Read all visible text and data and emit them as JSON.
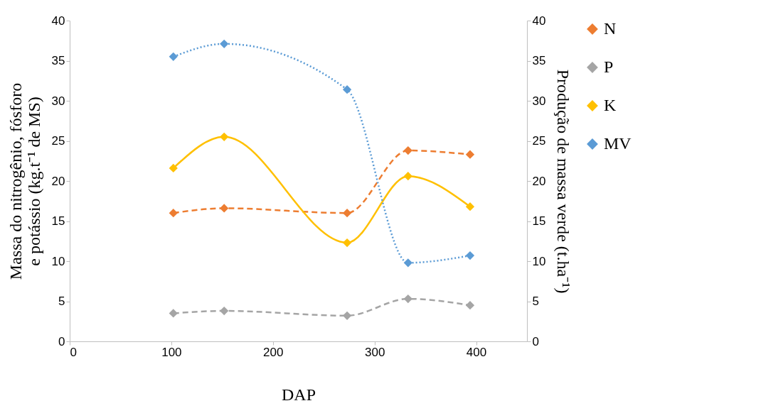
{
  "chart_data": {
    "type": "line",
    "xlabel": "DAP",
    "ylabel": "Massa do nitrogênio, fósforo e potássio (kg.t⁻¹ de MS)",
    "y2label": "Produção de massa verde (t.ha⁻¹)",
    "x": [
      102,
      152,
      273,
      333,
      394
    ],
    "series": [
      {
        "name": "N",
        "color": "#ed7d31",
        "line_style": "dashed",
        "values": [
          16.0,
          16.6,
          16.0,
          23.8,
          23.3
        ]
      },
      {
        "name": "P",
        "color": "#a5a5a5",
        "line_style": "dashed",
        "values": [
          3.5,
          3.8,
          3.2,
          5.3,
          4.5
        ]
      },
      {
        "name": "K",
        "color": "#ffc000",
        "line_style": "solid",
        "values": [
          21.6,
          25.5,
          12.3,
          20.6,
          16.8
        ]
      },
      {
        "name": "MV",
        "color": "#5b9bd5",
        "line_style": "dotted",
        "axis": "y2",
        "values": [
          35.5,
          37.1,
          31.4,
          9.8,
          10.7
        ]
      }
    ],
    "xlim": [
      0,
      450
    ],
    "xticks": [
      0,
      100,
      200,
      300,
      400
    ],
    "ylim": [
      0,
      40
    ],
    "yticks": [
      0,
      5,
      10,
      15,
      20,
      25,
      30,
      35,
      40
    ],
    "y2lim": [
      0,
      40
    ],
    "y2ticks": [
      0,
      5,
      10,
      15,
      20,
      25,
      30,
      35,
      40
    ],
    "marker": "diamond",
    "grid": false,
    "legend": "right"
  }
}
